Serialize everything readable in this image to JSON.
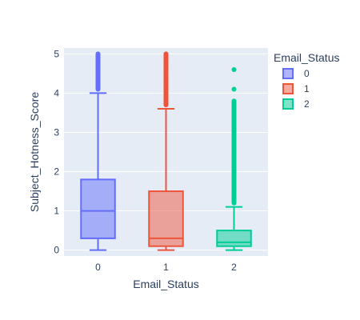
{
  "chart_data": {
    "type": "box",
    "xlabel": "Email_Status",
    "ylabel": "Subject_Hotness_Score",
    "ylim": [
      -0.15,
      5.15
    ],
    "yticks": [
      0,
      1,
      2,
      3,
      4,
      5
    ],
    "grid": true,
    "legend": {
      "title": "Email_Status",
      "placement": "top-right"
    },
    "categories": [
      "0",
      "1",
      "2"
    ],
    "series": [
      {
        "name": "0",
        "color": "#636efa",
        "min": 0.0,
        "q1": 0.3,
        "median": 1.0,
        "q3": 1.8,
        "upper_fence": 4.0,
        "outliers_range": [
          4.1,
          5.0
        ]
      },
      {
        "name": "1",
        "color": "#ef553b",
        "min": 0.0,
        "q1": 0.1,
        "median": 0.3,
        "q3": 1.5,
        "upper_fence": 3.6,
        "outliers_range": [
          3.7,
          5.0
        ]
      },
      {
        "name": "2",
        "color": "#00cc96",
        "min": 0.0,
        "q1": 0.1,
        "median": 0.2,
        "q3": 0.5,
        "upper_fence": 1.1,
        "outliers_range": [
          1.2,
          3.8
        ],
        "extra_outliers": [
          4.1,
          4.6
        ]
      }
    ]
  }
}
